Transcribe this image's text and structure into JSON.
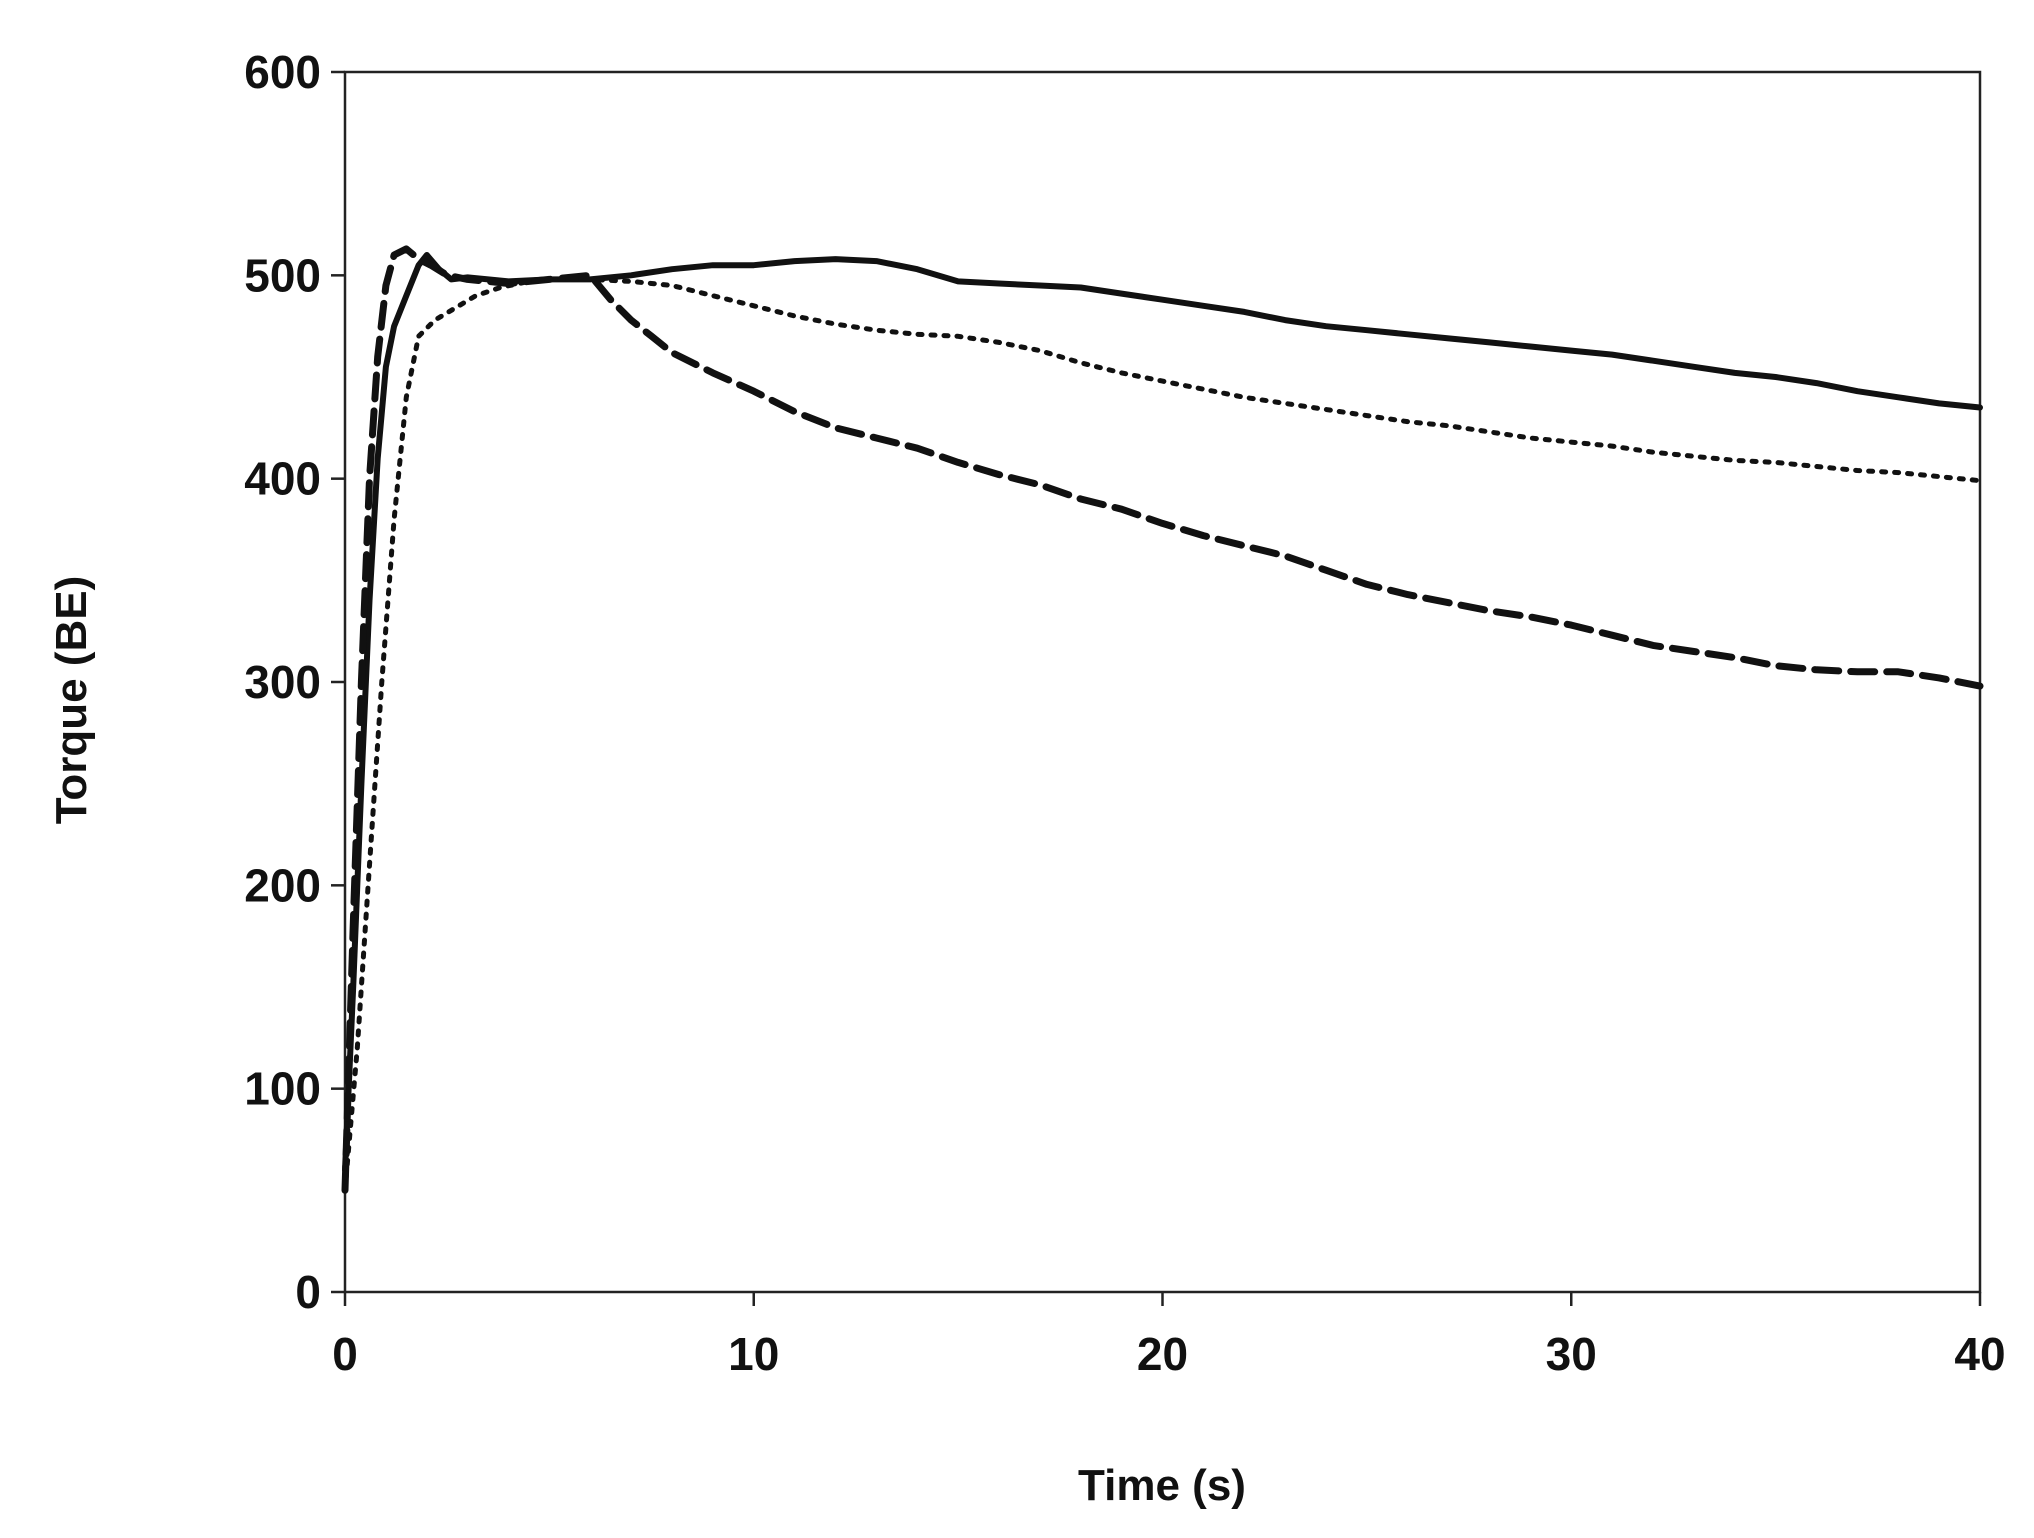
{
  "chart_data": {
    "type": "line",
    "xlabel": "Time (s)",
    "ylabel": "Torque (BE)",
    "xlim": [
      0,
      40
    ],
    "ylim": [
      0,
      600
    ],
    "xticks": [
      0,
      10,
      20,
      30,
      40
    ],
    "yticks": [
      0,
      100,
      200,
      300,
      400,
      500,
      600
    ],
    "grid": false,
    "legend": "none",
    "series": [
      {
        "style": "solid",
        "color": "#111111",
        "x": [
          0,
          0.2,
          0.4,
          0.6,
          0.8,
          1.0,
          1.2,
          1.5,
          1.8,
          2.0,
          2.3,
          2.6,
          3.0,
          3.5,
          4.0,
          5.0,
          6.0,
          7.0,
          8.0,
          9.0,
          10.0,
          11.0,
          12.0,
          13.0,
          14.0,
          15.0,
          16.0,
          17.0,
          18.0,
          19.0,
          20.0,
          21.0,
          22.0,
          23.0,
          24.0,
          25.0,
          26.0,
          27.0,
          28.0,
          29.0,
          30.0,
          31.0,
          32.0,
          33.0,
          34.0,
          35.0,
          36.0,
          37.0,
          38.0,
          39.0,
          40.0
        ],
        "y": [
          60,
          150,
          250,
          340,
          410,
          455,
          475,
          490,
          505,
          510,
          503,
          498,
          499,
          498,
          497,
          498,
          498,
          500,
          503,
          505,
          505,
          507,
          508,
          507,
          503,
          497,
          496,
          495,
          494,
          491,
          488,
          485,
          482,
          478,
          475,
          473,
          471,
          469,
          467,
          465,
          463,
          461,
          458,
          455,
          452,
          450,
          447,
          443,
          440,
          437,
          435
        ]
      },
      {
        "style": "dashed",
        "color": "#111111",
        "x": [
          0,
          0.2,
          0.4,
          0.6,
          0.8,
          1.0,
          1.2,
          1.5,
          1.8,
          2.1,
          2.5,
          3.0,
          3.5,
          4.0,
          5.0,
          6.0,
          6.5,
          7.0,
          7.5,
          8.0,
          9.0,
          10.0,
          11.0,
          12.0,
          13.0,
          14.0,
          15.0,
          16.0,
          17.0,
          18.0,
          19.0,
          20.0,
          21.0,
          22.0,
          23.0,
          24.0,
          25.0,
          26.0,
          27.0,
          28.0,
          29.0,
          30.0,
          31.0,
          32.0,
          33.0,
          34.0,
          35.0,
          36.0,
          37.0,
          38.0,
          39.0,
          40.0
        ],
        "y": [
          50,
          180,
          300,
          400,
          460,
          495,
          510,
          513,
          508,
          505,
          500,
          498,
          497,
          496,
          498,
          500,
          488,
          478,
          470,
          462,
          452,
          443,
          433,
          425,
          420,
          415,
          408,
          402,
          397,
          390,
          385,
          378,
          372,
          367,
          362,
          355,
          348,
          343,
          339,
          335,
          332,
          328,
          323,
          318,
          315,
          312,
          308,
          306,
          305,
          305,
          302,
          298
        ]
      },
      {
        "style": "dotted",
        "color": "#111111",
        "x": [
          0,
          0.3,
          0.6,
          0.9,
          1.2,
          1.5,
          1.8,
          2.2,
          2.7,
          3.2,
          3.8,
          4.5,
          5.0,
          6.0,
          7.0,
          8.0,
          9.0,
          10.0,
          11.0,
          12.0,
          13.0,
          14.0,
          15.0,
          16.0,
          17.0,
          18.0,
          19.0,
          20.0,
          21.0,
          22.0,
          23.0,
          24.0,
          25.0,
          26.0,
          27.0,
          28.0,
          29.0,
          30.0,
          31.0,
          32.0,
          33.0,
          34.0,
          35.0,
          36.0,
          37.0,
          38.0,
          39.0,
          40.0
        ],
        "y": [
          50,
          120,
          210,
          300,
          380,
          440,
          470,
          478,
          484,
          490,
          494,
          497,
          498,
          498,
          497,
          495,
          490,
          485,
          480,
          476,
          473,
          471,
          470,
          467,
          463,
          457,
          452,
          448,
          444,
          440,
          437,
          434,
          431,
          428,
          426,
          423,
          420,
          418,
          416,
          413,
          411,
          409,
          408,
          406,
          404,
          403,
          401,
          399
        ]
      }
    ]
  }
}
